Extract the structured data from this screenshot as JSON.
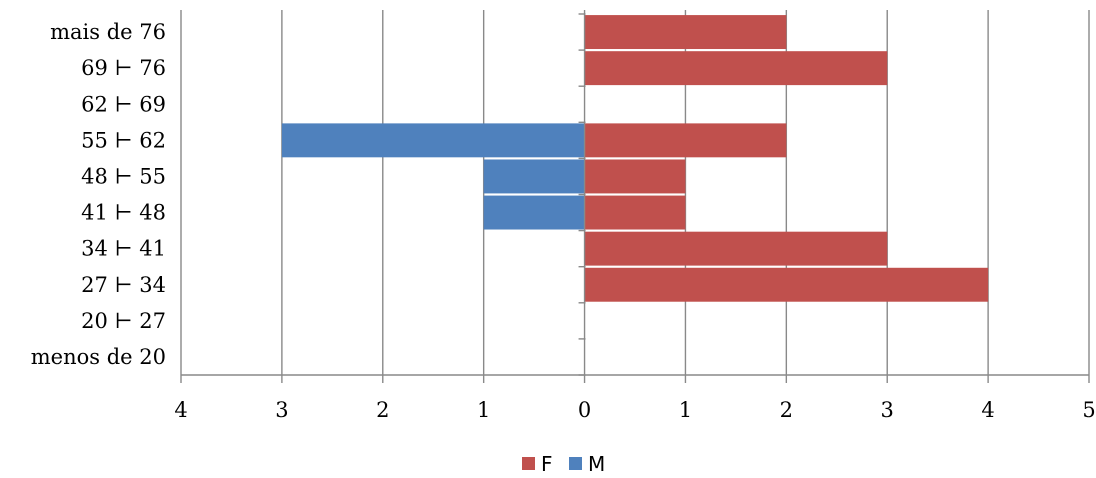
{
  "chart_data": {
    "type": "bar",
    "orientation": "horizontal",
    "layout": "population-pyramid",
    "categories": [
      "mais de 76",
      "69 ⊢ 76",
      "62 ⊢ 69",
      "55 ⊢ 62",
      "48 ⊢ 55",
      "41 ⊢ 48",
      "34 ⊢ 41",
      "27 ⊢ 34",
      "20 ⊢ 27",
      "menos de 20"
    ],
    "series": [
      {
        "name": "F",
        "color": "#C0504D",
        "direction": "right",
        "values": [
          2,
          3,
          0,
          2,
          1,
          1,
          3,
          4,
          0,
          0
        ]
      },
      {
        "name": "M",
        "color": "#4F81BD",
        "direction": "left",
        "values": [
          0,
          0,
          0,
          3,
          1,
          1,
          0,
          0,
          0,
          0
        ]
      }
    ],
    "xlim": [
      -4,
      5
    ],
    "x_ticks": [
      -4,
      -3,
      -2,
      -1,
      0,
      1,
      2,
      3,
      4,
      5
    ],
    "x_tick_labels": [
      "4",
      "3",
      "2",
      "1",
      "0",
      "1",
      "2",
      "3",
      "4",
      "5"
    ],
    "grid": "vertical",
    "legend_position": "bottom",
    "title": "",
    "xlabel": "",
    "ylabel": ""
  }
}
